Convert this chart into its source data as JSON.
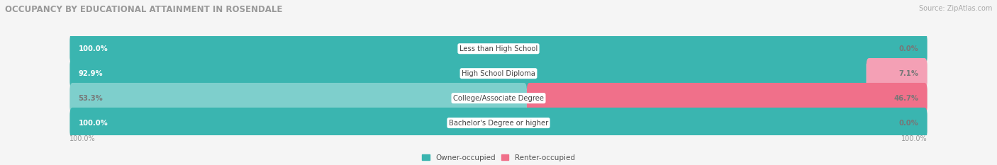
{
  "title": "OCCUPANCY BY EDUCATIONAL ATTAINMENT IN ROSENDALE",
  "source": "Source: ZipAtlas.com",
  "categories": [
    "Less than High School",
    "High School Diploma",
    "College/Associate Degree",
    "Bachelor's Degree or higher"
  ],
  "owner_values": [
    100.0,
    92.9,
    53.3,
    100.0
  ],
  "renter_values": [
    0.0,
    7.1,
    46.7,
    0.0
  ],
  "owner_color": "#3ab5b0",
  "renter_color": "#f0708a",
  "owner_light": "#7ecfcc",
  "renter_light": "#f4a0b5",
  "bg_color": "#f5f5f5",
  "row_bg_even": "#ebebeb",
  "row_bg_odd": "#f5f5f5",
  "bar_bg_color": "#dcdcdc",
  "title_color": "#999999",
  "source_color": "#aaaaaa",
  "value_color_white": "#ffffff",
  "value_color_dark": "#777777",
  "legend_owner": "Owner-occupied",
  "legend_renter": "Renter-occupied",
  "figsize": [
    14.06,
    2.33
  ],
  "dpi": 100
}
